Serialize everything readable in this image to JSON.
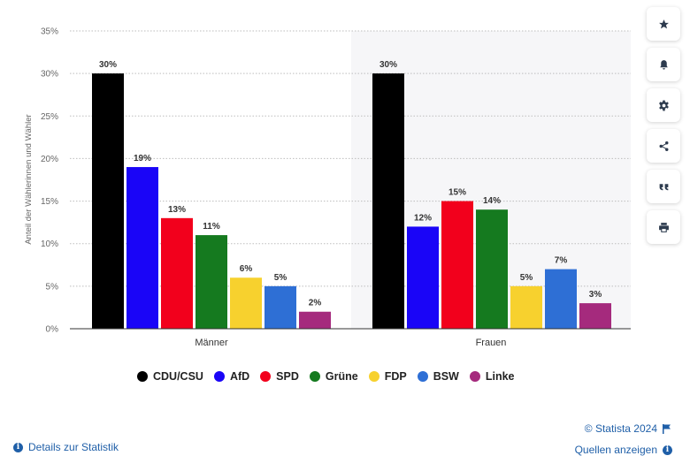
{
  "chart_data": {
    "type": "bar",
    "categories": [
      "Männer",
      "Frauen"
    ],
    "series": [
      {
        "name": "CDU/CSU",
        "color": "#000000",
        "values": [
          30,
          30
        ]
      },
      {
        "name": "AfD",
        "color": "#1a05f7",
        "values": [
          19,
          12
        ]
      },
      {
        "name": "SPD",
        "color": "#f2001c",
        "values": [
          13,
          15
        ]
      },
      {
        "name": "Grüne",
        "color": "#157a1f",
        "values": [
          11,
          14
        ]
      },
      {
        "name": "FDP",
        "color": "#f7d12e",
        "values": [
          6,
          5
        ]
      },
      {
        "name": "BSW",
        "color": "#2e6fd5",
        "values": [
          5,
          7
        ]
      },
      {
        "name": "Linke",
        "color": "#a52a7d",
        "values": [
          2,
          3
        ]
      }
    ],
    "value_labels": [
      [
        "30%",
        "30%"
      ],
      [
        "19%",
        "12%"
      ],
      [
        "13%",
        "15%"
      ],
      [
        "11%",
        "14%"
      ],
      [
        "6%",
        "5%"
      ],
      [
        "5%",
        "7%"
      ],
      [
        "2%",
        "3%"
      ]
    ],
    "ylabel": "Anteil der Wählerinnen und Wähler",
    "xlabel": "",
    "ylim": [
      0,
      35
    ],
    "yticks": [
      0,
      5,
      10,
      15,
      20,
      25,
      30,
      35
    ],
    "ytick_labels": [
      "0%",
      "5%",
      "10%",
      "15%",
      "20%",
      "25%",
      "30%",
      "35%"
    ],
    "grid": true,
    "legend_position": "bottom"
  },
  "footer": {
    "details_label": "Details zur Statistik",
    "copyright": "© Statista 2024",
    "sources_label": "Quellen anzeigen"
  },
  "toolbar": {
    "items": [
      "star-icon",
      "bell-icon",
      "gear-icon",
      "share-icon",
      "quote-icon",
      "print-icon"
    ]
  }
}
